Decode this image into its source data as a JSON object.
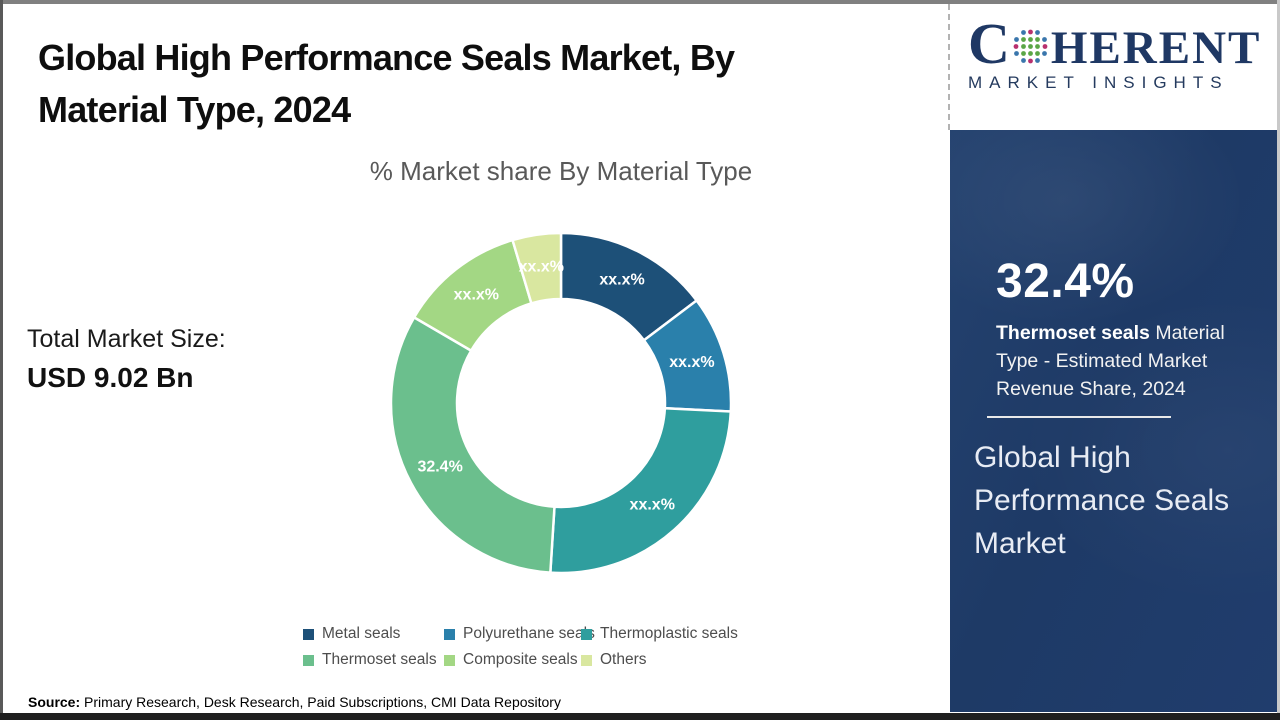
{
  "header": {
    "title_line1": "Global High Performance Seals Market, By",
    "title_line2": "Material Type, 2024"
  },
  "market_size": {
    "label": "Total Market Size:",
    "value": "USD 9.02 Bn"
  },
  "chart_data": {
    "type": "pie",
    "subtype": "donut",
    "title": "% Market share By Material Type",
    "legend_position": "bottom",
    "start_angle_deg": 0,
    "series": [
      {
        "name": "Metal seals",
        "value": 14.7,
        "display_label": "xx.x%",
        "color": "#1d5078"
      },
      {
        "name": "Polyurethane seals",
        "value": 11.1,
        "display_label": "xx.x%",
        "color": "#2a80ab"
      },
      {
        "name": "Thermoplastic seals",
        "value": 25.2,
        "display_label": "xx.x%",
        "color": "#2f9e9e"
      },
      {
        "name": "Thermoset seals",
        "value": 32.4,
        "display_label": "32.4%",
        "color": "#6bbf8d"
      },
      {
        "name": "Composite seals",
        "value": 12.0,
        "display_label": "xx.x%",
        "color": "#a3d784"
      },
      {
        "name": "Others",
        "value": 4.6,
        "display_label": "xx.x%",
        "color": "#d9e7a0"
      }
    ]
  },
  "source": {
    "label": "Source:",
    "text": " Primary Research, Desk Research, Paid Subscriptions, CMI Data Repository"
  },
  "sidebar": {
    "logo_brand_c": "C",
    "logo_brand_rest": "HERENT",
    "logo_tagline": "MARKET INSIGHTS",
    "logo_color": "#1f3864",
    "stat_value": "32.4%",
    "stat_highlight": "Thermoset seals",
    "stat_description": " Material Type - Estimated Market Revenue Share, 2024",
    "market_title": "Global High Performance Seals Market",
    "panel_color": "#203d6d"
  }
}
